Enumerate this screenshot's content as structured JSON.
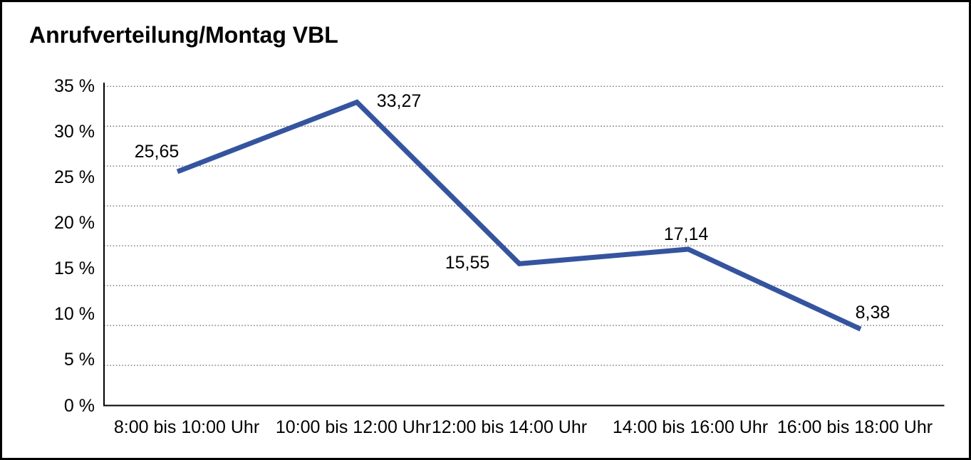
{
  "title": "Anrufverteilung/Montag VBL",
  "chart_data": {
    "type": "line",
    "title": "Anrufverteilung/Montag VBL",
    "categories": [
      "8:00 bis 10:00 Uhr",
      "10:00 bis 12:00 Uhr",
      "12:00 bis 14:00 Uhr",
      "14:00 bis 16:00 Uhr",
      "16:00 bis 18:00 Uhr"
    ],
    "values": [
      25.65,
      33.27,
      15.55,
      17.14,
      8.38
    ],
    "data_labels": [
      "25,65",
      "33,27",
      "15,55",
      "17,14",
      "8,38"
    ],
    "y_ticks": [
      "35 %",
      "30 %",
      "25 %",
      "20 %",
      "15 %",
      "10 %",
      "5 %",
      "0 %"
    ],
    "y_tick_values": [
      35,
      30,
      25,
      20,
      15,
      10,
      5,
      0
    ],
    "ylim": [
      0,
      35
    ],
    "xlabel": "",
    "ylabel": "",
    "legend": "none",
    "grid": "horizontal dotted",
    "line_color": "#35549F",
    "axis_color": "#000000",
    "gridline_color": "#777777",
    "text_color": "#000000",
    "background_color": "#FFFFFF"
  }
}
